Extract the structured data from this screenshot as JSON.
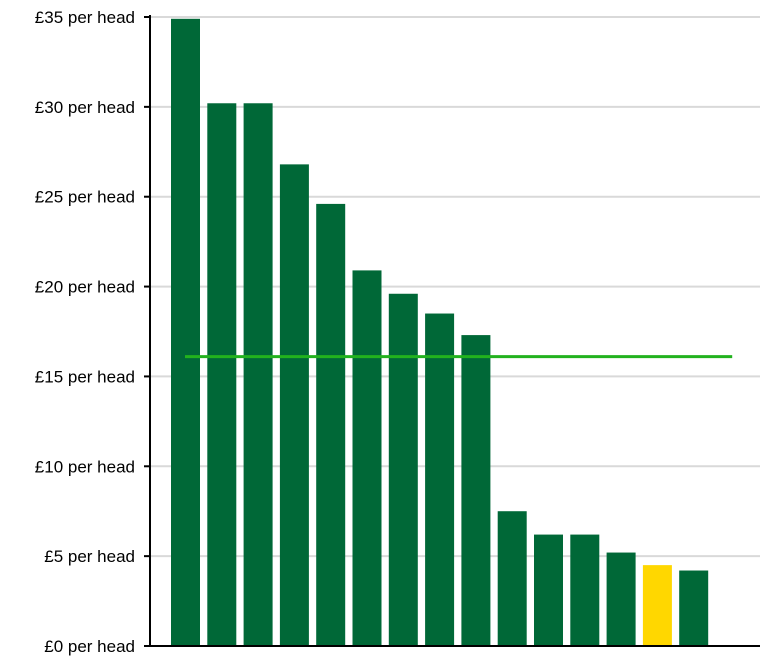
{
  "chart_data": {
    "type": "bar",
    "title": "",
    "xlabel": "",
    "ylabel": "",
    "ylim": [
      0,
      35
    ],
    "y_ticks": [
      0,
      5,
      10,
      15,
      20,
      25,
      30,
      35
    ],
    "y_tick_labels": [
      "£0 per head",
      "£5 per head",
      "£10 per head",
      "£15 per head",
      "£20 per head",
      "£25 per head",
      "£30 per head",
      "£35 per head"
    ],
    "grid": "horizontal",
    "legend": "none",
    "values": [
      34.9,
      30.2,
      30.2,
      26.8,
      24.6,
      20.9,
      19.6,
      18.5,
      17.3,
      7.5,
      6.2,
      6.2,
      5.2,
      4.5,
      4.2
    ],
    "highlight_index": 13,
    "reference_line": 16.1,
    "colors": {
      "bar": "#006837",
      "highlight": "#ffd700",
      "reference_line": "#22b21e",
      "grid": "#d9d9d9",
      "axis": "#000000"
    }
  }
}
